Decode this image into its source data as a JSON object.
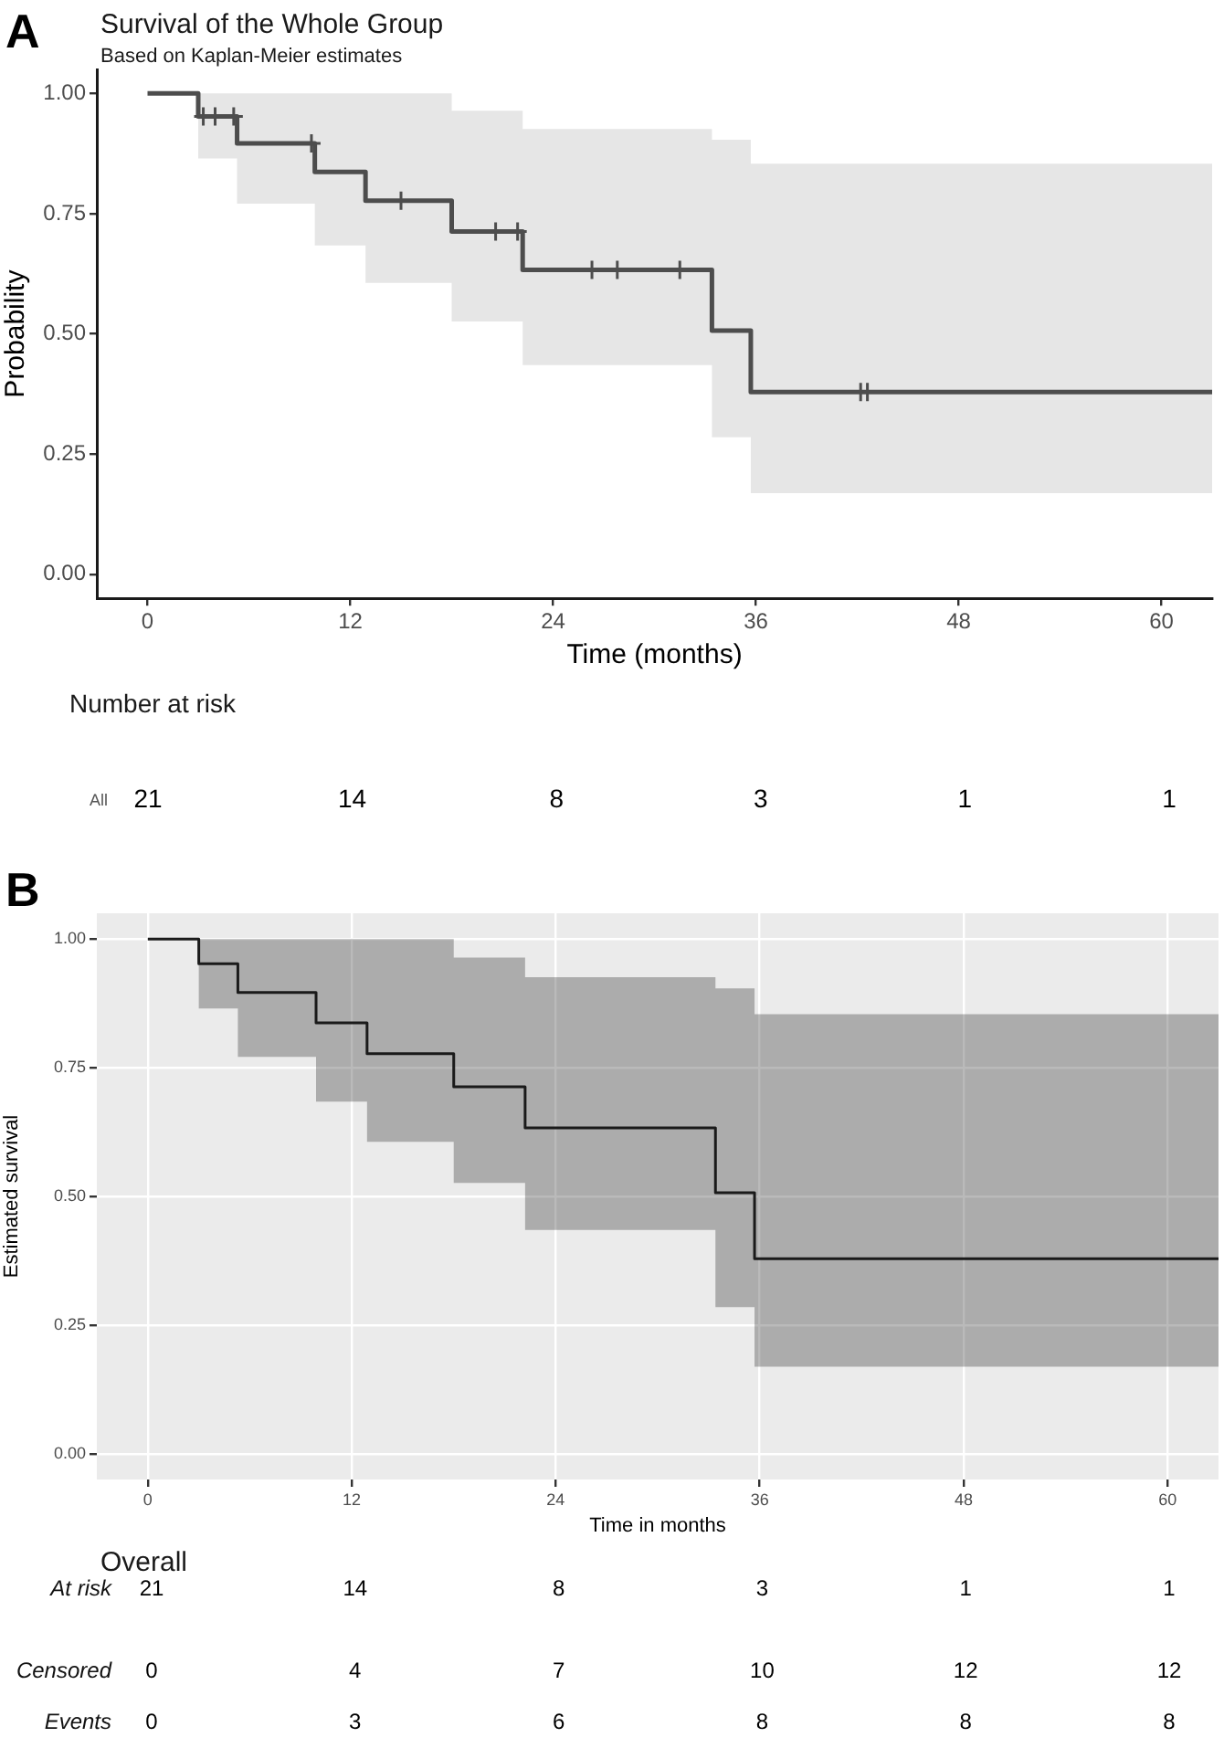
{
  "chart_data": [
    {
      "type": "step",
      "title": "Survival of the Whole Group",
      "subtitle": "Based on Kaplan-Meier estimates",
      "xlabel": "Time (months)",
      "ylabel": "Probability",
      "annotations": [
        "A"
      ],
      "xlim": [
        -3,
        63
      ],
      "xticks": [
        0,
        12,
        24,
        36,
        48,
        60
      ],
      "ylim": [
        -0.05,
        1.05
      ],
      "yticks": [
        {
          "value": 0,
          "label": "0.00"
        },
        {
          "value": 0.25,
          "label": "0.25"
        },
        {
          "value": 0.5,
          "label": "0.50"
        },
        {
          "value": 0.75,
          "label": "0.75"
        },
        {
          "value": 1,
          "label": "1.00"
        }
      ],
      "grid": false,
      "legend": false,
      "line_style": "solid",
      "series": [
        {
          "color": "#4d4d4d",
          "x": [
            0,
            3,
            5.3,
            9.9,
            12.9,
            18,
            22.2,
            33.4,
            35.7,
            63
          ],
          "values": [
            1,
            0.952,
            0.896,
            0.837,
            0.777,
            0.713,
            0.633,
            0.507,
            0.379,
            0.379
          ],
          "lower": [
            1,
            0.865,
            0.771,
            0.684,
            0.606,
            0.526,
            0.435,
            0.285,
            0.169,
            0.169
          ],
          "upper": [
            1,
            1,
            1,
            1,
            1,
            0.964,
            0.926,
            0.904,
            0.854,
            0.854
          ]
        },
        {
          "type": "scatter",
          "marker": "cross",
          "color": "#4d4d4d",
          "x": [
            3.3,
            4.0,
            5.1,
            9.7,
            15.0,
            20.6,
            21.9,
            26.3,
            27.8,
            31.5,
            42.2,
            42.6
          ],
          "values": [
            0.952,
            0.952,
            0.952,
            0.896,
            0.777,
            0.713,
            0.713,
            0.633,
            0.633,
            0.633,
            0.379,
            0.379
          ]
        }
      ]
    },
    {
      "type": "other",
      "title": "Number at risk",
      "categories": [
        null,
        null,
        null,
        null,
        null,
        null
      ],
      "data_labels": true,
      "series": [
        {
          "name": "All",
          "values": [
            21,
            14,
            8,
            3,
            1,
            1
          ]
        }
      ]
    },
    {
      "type": "step",
      "xlabel": "Time in months",
      "ylabel": "Estimated survival",
      "annotations": [
        "B"
      ],
      "xlim": [
        -3,
        63
      ],
      "xticks": [
        0,
        12,
        24,
        36,
        48,
        60
      ],
      "ylim": [
        -0.05,
        1.05
      ],
      "yticks": [
        {
          "value": 0,
          "label": "0.00"
        },
        {
          "value": 0.25,
          "label": "0.25"
        },
        {
          "value": 0.5,
          "label": "0.50"
        },
        {
          "value": 0.75,
          "label": "0.75"
        },
        {
          "value": 1,
          "label": "1.00"
        }
      ],
      "grid": true,
      "legend": false,
      "line_style": "solid",
      "series": [
        {
          "color": "#1a1a1a",
          "x": [
            0,
            3,
            5.3,
            9.9,
            12.9,
            18,
            22.2,
            33.4,
            35.7,
            63
          ],
          "values": [
            1,
            0.952,
            0.896,
            0.837,
            0.777,
            0.713,
            0.633,
            0.507,
            0.379,
            0.379
          ],
          "lower": [
            1,
            0.865,
            0.771,
            0.684,
            0.606,
            0.526,
            0.435,
            0.285,
            0.169,
            0.169
          ],
          "upper": [
            1,
            1,
            1,
            1,
            1,
            0.964,
            0.926,
            0.904,
            0.854,
            0.854
          ]
        }
      ]
    },
    {
      "type": "other",
      "title": "Overall",
      "categories": [
        null,
        null,
        null,
        null,
        null,
        null
      ],
      "data_labels": true,
      "series": [
        {
          "name": "At risk",
          "values": [
            21,
            14,
            8,
            3,
            1,
            1
          ]
        }
      ]
    },
    {
      "type": "other",
      "categories": [
        null,
        null,
        null,
        null,
        null,
        null
      ],
      "data_labels": true,
      "series": [
        {
          "name": "Censored",
          "values": [
            0,
            4,
            7,
            10,
            12,
            12
          ]
        }
      ]
    },
    {
      "type": "other",
      "categories": [
        null,
        null,
        null,
        null,
        null,
        null
      ],
      "data_labels": true,
      "series": [
        {
          "name": "Events",
          "values": [
            0,
            3,
            6,
            8,
            8,
            8
          ]
        }
      ]
    }
  ]
}
